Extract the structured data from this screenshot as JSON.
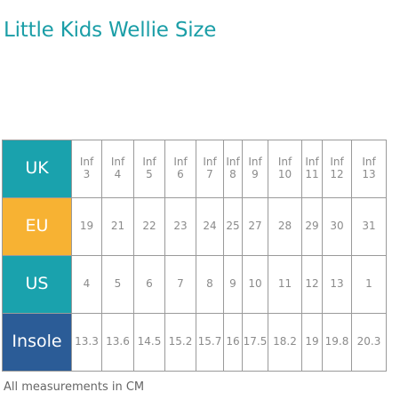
{
  "title": "Little Kids Wellie Size",
  "footnote": "All measurements in CM",
  "colors": {
    "title": "#1b9ea7",
    "uk": "#1aa2ad",
    "eu": "#f7b233",
    "us": "#1aa2ad",
    "insole": "#2b5c97"
  },
  "rows": [
    {
      "label": "UK",
      "color": "#1aa2ad",
      "cells": [
        [
          "Inf",
          "3"
        ],
        [
          "Inf",
          "4"
        ],
        [
          "Inf",
          "5"
        ],
        [
          "Inf",
          "6"
        ],
        [
          "Inf",
          "7"
        ],
        [
          "Inf",
          "8"
        ],
        [
          "Inf",
          "9"
        ],
        [
          "Inf",
          "10"
        ],
        [
          "Inf",
          "11"
        ],
        [
          "Inf",
          "12"
        ],
        [
          "Inf",
          "13"
        ]
      ]
    },
    {
      "label": "EU",
      "color": "#f7b233",
      "cells": [
        [
          "19"
        ],
        [
          "21"
        ],
        [
          "22"
        ],
        [
          "23"
        ],
        [
          "24"
        ],
        [
          "25"
        ],
        [
          "27"
        ],
        [
          "28"
        ],
        [
          "29"
        ],
        [
          "30"
        ],
        [
          "31"
        ]
      ]
    },
    {
      "label": "US",
      "color": "#1aa2ad",
      "cells": [
        [
          "4"
        ],
        [
          "5"
        ],
        [
          "6"
        ],
        [
          "7"
        ],
        [
          "8"
        ],
        [
          "9"
        ],
        [
          "10"
        ],
        [
          "11"
        ],
        [
          "12"
        ],
        [
          "13"
        ],
        [
          "1"
        ]
      ]
    },
    {
      "label": "Insole",
      "color": "#2b5c97",
      "cells": [
        [
          "13.3"
        ],
        [
          "13.6"
        ],
        [
          "14.5"
        ],
        [
          "15.2"
        ],
        [
          "15.7"
        ],
        [
          "16"
        ],
        [
          "17.5"
        ],
        [
          "18.2"
        ],
        [
          "19"
        ],
        [
          "19.8"
        ],
        [
          "20.3"
        ]
      ]
    }
  ]
}
